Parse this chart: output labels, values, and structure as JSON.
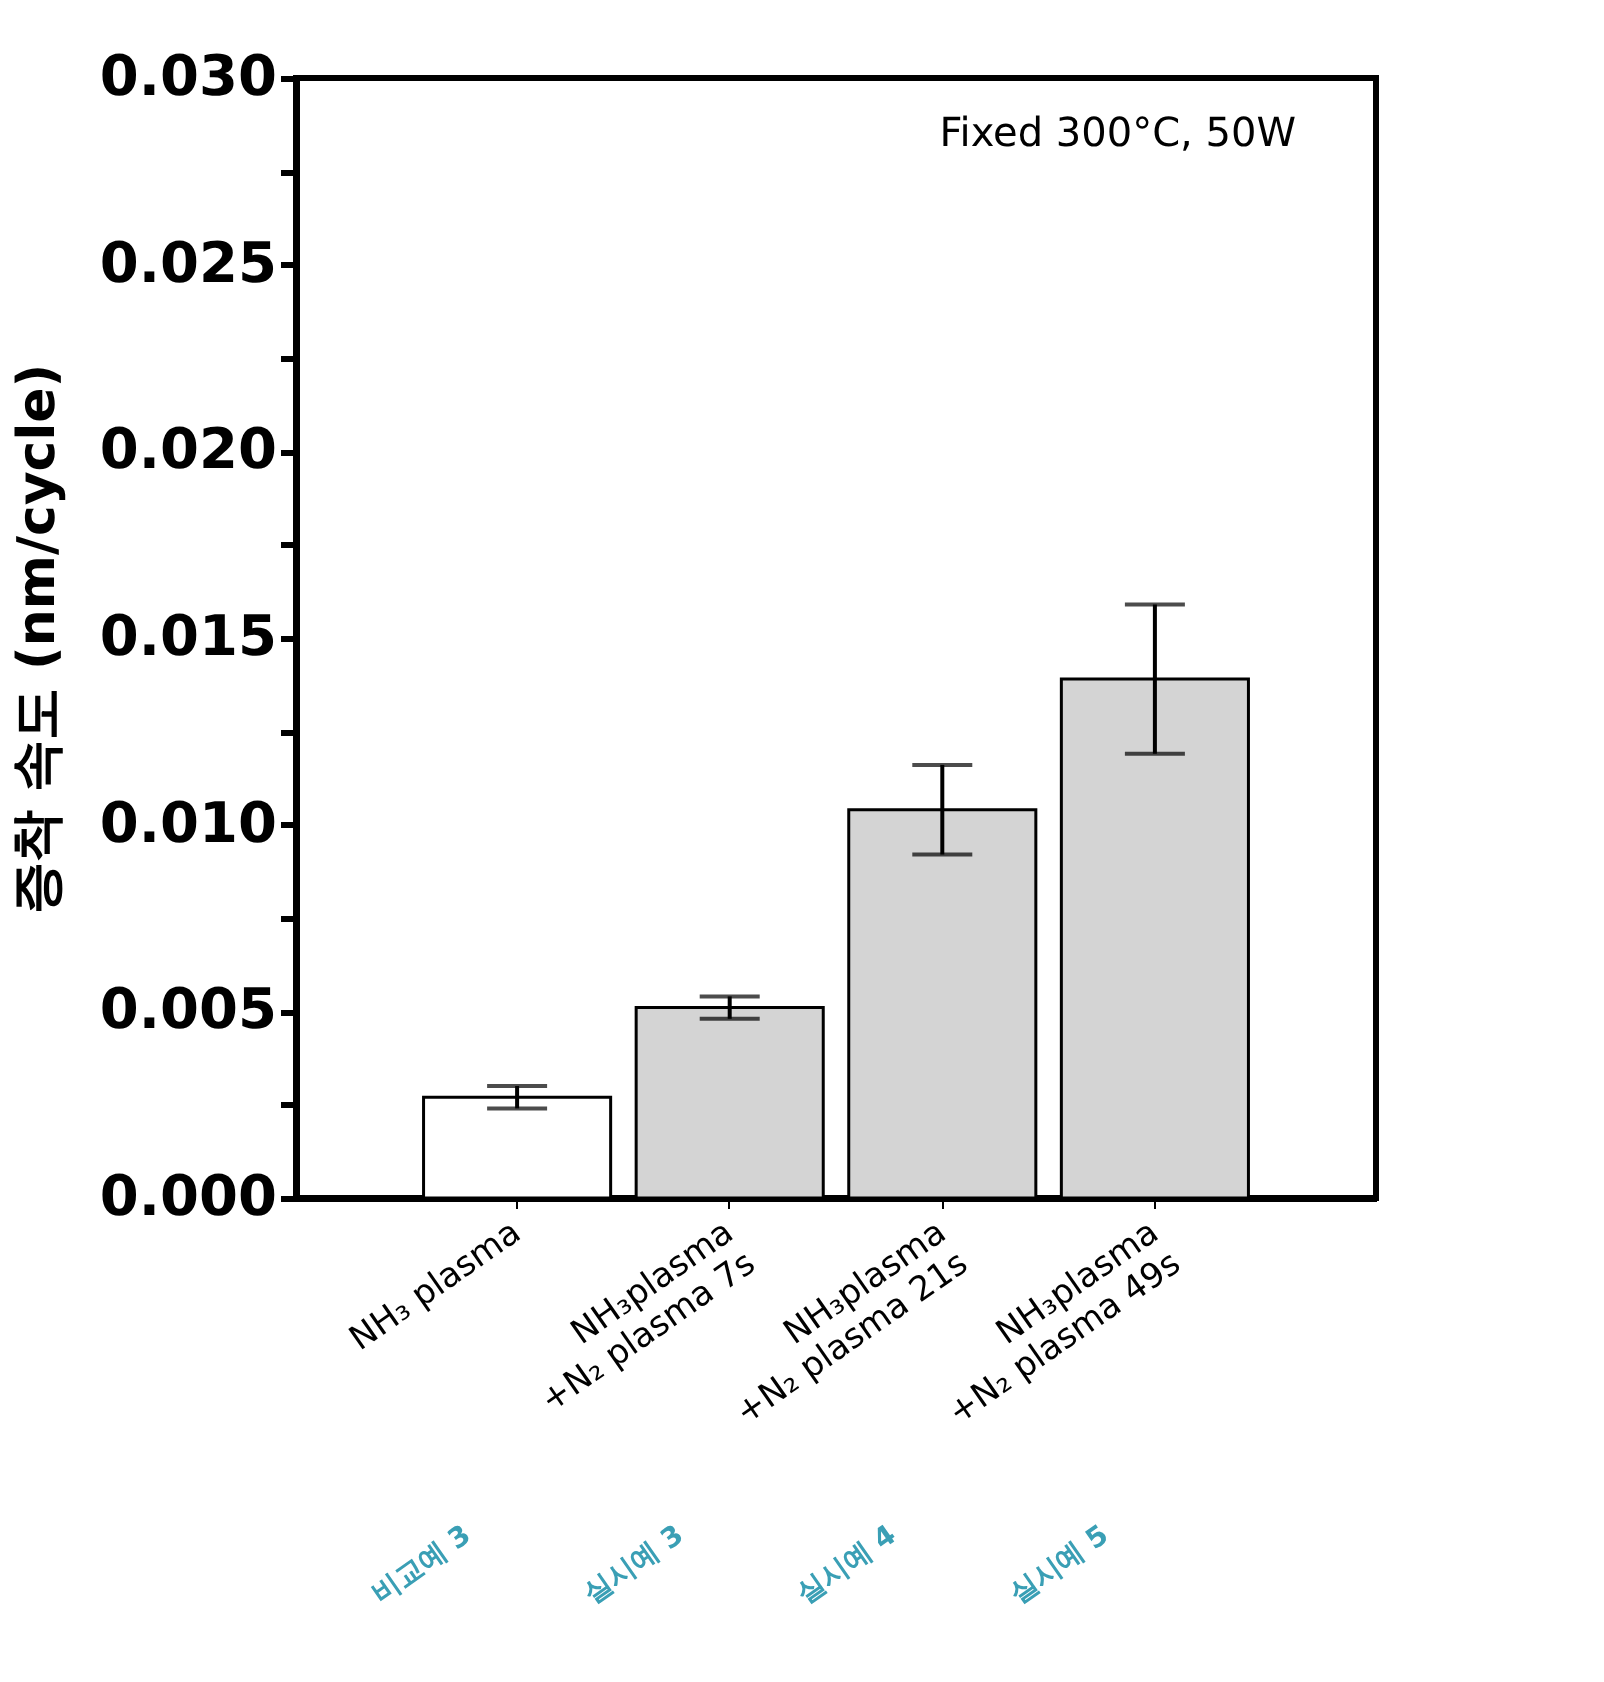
{
  "chart_data": {
    "type": "bar",
    "ylabel": "증착 속도 (nm/cycle)",
    "categories": [
      "NH₃ plasma",
      "NH₃plasma\n+N₂ plasma 7s",
      "NH₃plasma\n+N₂ plasma 21s",
      "NH₃plasma\n+N₂ plasma 49s"
    ],
    "values": [
      0.0027,
      0.0051,
      0.0104,
      0.0139
    ],
    "errors": [
      0.0003,
      0.0003,
      0.0012,
      0.002
    ],
    "colors": [
      "#ffffff",
      "#d4d4d4",
      "#d4d4d4",
      "#d4d4d4"
    ],
    "ylim": [
      0,
      0.03
    ],
    "yticks": [
      {
        "value": 0,
        "label": "0.000"
      },
      {
        "value": 0.0025,
        "label": null
      },
      {
        "value": 0.005,
        "label": "0.005"
      },
      {
        "value": 0.0075,
        "label": null
      },
      {
        "value": 0.01,
        "label": "0.010"
      },
      {
        "value": 0.0125,
        "label": null
      },
      {
        "value": 0.015,
        "label": "0.015"
      },
      {
        "value": 0.0175,
        "label": null
      },
      {
        "value": 0.02,
        "label": "0.020"
      },
      {
        "value": 0.0225,
        "label": null
      },
      {
        "value": 0.025,
        "label": "0.025"
      },
      {
        "value": 0.0275,
        "label": null
      },
      {
        "value": 0.03,
        "label": "0.030"
      }
    ],
    "annotations": [
      "Fixed 300°C, 50W",
      "비교예 3",
      "실시예 3",
      "실시예 4",
      "실시예 5"
    ],
    "grid": false
  }
}
